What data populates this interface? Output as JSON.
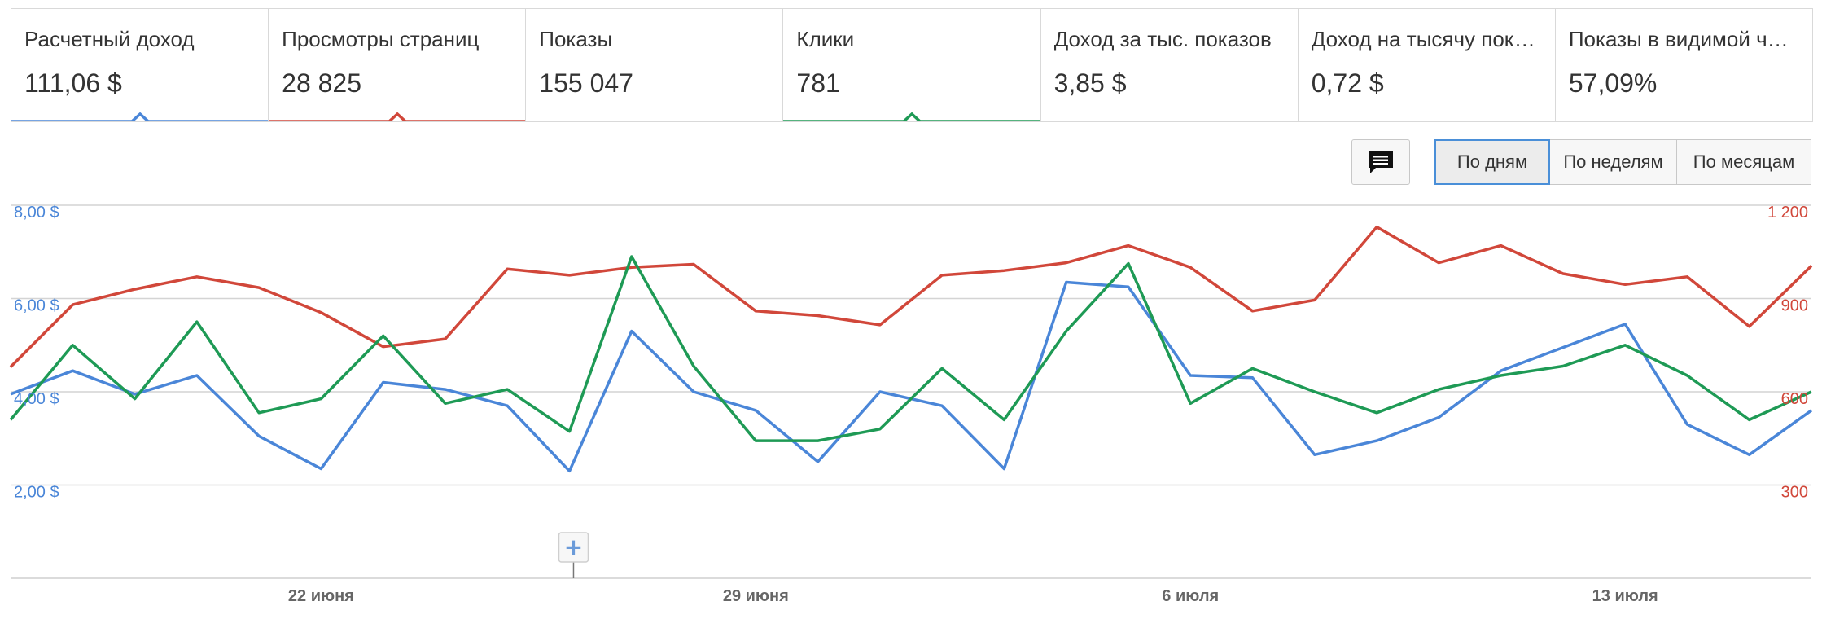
{
  "metrics": [
    {
      "label": "Расчетный доход",
      "value": "111,06 $",
      "color": "#4a86d8",
      "selected": true
    },
    {
      "label": "Просмотры страниц",
      "value": "28 825",
      "color": "#d1473a",
      "selected": true
    },
    {
      "label": "Показы",
      "value": "155 047",
      "color": "",
      "selected": false
    },
    {
      "label": "Клики",
      "value": "781",
      "color": "#1e9a55",
      "selected": true
    },
    {
      "label": "Доход за тыс. показов",
      "value": "3,85 $",
      "color": "",
      "selected": false
    },
    {
      "label": "Доход на тысячу показов",
      "value": "0,72 $",
      "color": "",
      "selected": false
    },
    {
      "label": "Показы в видимой части",
      "value": "57,09%",
      "color": "",
      "selected": false
    }
  ],
  "controls": {
    "annotation_icon": "comment-icon",
    "period_options": [
      "По дням",
      "По неделям",
      "По месяцам"
    ],
    "active_period": "По дням"
  },
  "chart_data": {
    "type": "line",
    "x_tick_labels": [
      "22 июня",
      "29 июня",
      "6 июля",
      "13 июля"
    ],
    "x_tick_indices": [
      5,
      12,
      19,
      26
    ],
    "left_axis": {
      "ticks": [
        "2,00 $",
        "4,00 $",
        "6,00 $",
        "8,00 $"
      ],
      "values": [
        2,
        4,
        6,
        8
      ],
      "range": [
        0,
        8
      ],
      "color": "#4a86d8"
    },
    "right_axis": {
      "ticks": [
        "300",
        "600",
        "900",
        "1 200"
      ],
      "values": [
        300,
        600,
        900,
        1200
      ],
      "range": [
        0,
        1200
      ],
      "color": "#d1473a"
    },
    "grid": true,
    "annotation_marker": {
      "index": 9,
      "symbol": "+"
    },
    "series": [
      {
        "axis": "right",
        "color": "#d1473a",
        "values": [
          680,
          880,
          930,
          970,
          935,
          855,
          745,
          770,
          995,
          975,
          1000,
          1010,
          860,
          845,
          815,
          975,
          990,
          1015,
          1070,
          1000,
          860,
          895,
          1130,
          1015,
          1070,
          980,
          945,
          970,
          810,
          1005
        ]
      },
      {
        "axis": "left",
        "color": "#4a86d8",
        "values": [
          3.95,
          4.45,
          3.95,
          4.35,
          3.05,
          2.35,
          4.2,
          4.05,
          3.7,
          2.3,
          5.3,
          4.0,
          3.6,
          2.5,
          4.0,
          3.7,
          2.35,
          6.35,
          6.25,
          4.35,
          4.3,
          2.65,
          2.95,
          3.45,
          4.45,
          4.95,
          5.45,
          3.3,
          2.65,
          3.6
        ]
      },
      {
        "axis": "left",
        "color": "#1e9a55",
        "values": [
          3.4,
          5.0,
          3.85,
          5.5,
          3.55,
          3.85,
          5.2,
          3.75,
          4.05,
          3.15,
          6.9,
          4.55,
          2.95,
          2.95,
          3.2,
          4.5,
          3.4,
          5.3,
          6.75,
          3.75,
          4.5,
          4.0,
          3.55,
          4.05,
          4.35,
          4.55,
          5.0,
          4.35,
          3.4,
          4.0
        ]
      }
    ]
  }
}
